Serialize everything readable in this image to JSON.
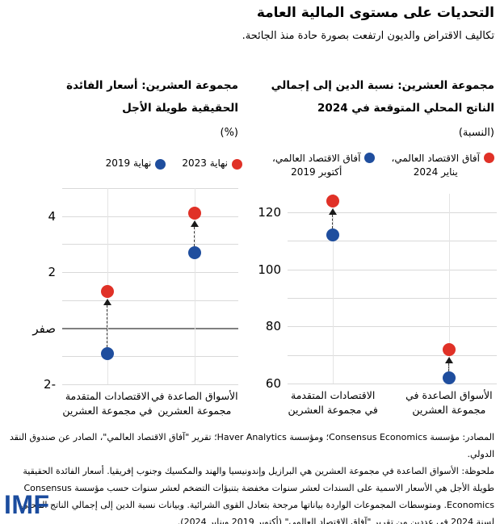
{
  "page": {
    "title": "التحديات على مستوى المالية العامة",
    "subtitle": "تكاليف الاقتراض والديون ارتفعت بصورة حادة منذ الجائحة.",
    "logo": "IMF"
  },
  "colors": {
    "dot_red": "#e03127",
    "dot_blue": "#1f4e9e",
    "arrow_black": "#1a1a1a",
    "gridline_gray": "#d9d9d9",
    "zero_line_gray": "#808080",
    "logo_blue": "#1b4c9e"
  },
  "footer": {
    "sources": "المصادر: مؤسسة Consensus Economics؛ ومؤسسة Haver Analytics؛ تقرير \"آفاق الاقتصاد العالمي\"، الصادر عن صندوق النقد الدولي.",
    "note": "ملحوظة: الأسواق الصاعدة في مجموعة العشرين هي البرازيل وإندونيسيا والهند والمكسيك وجنوب إفريقيا. أسعار الفائدة الحقيقية طويلة الأجل هي الأسعار الاسمية على السندات لعشر سنوات مخفضة بتنبؤات التضخم لعشر سنوات حسب مؤسسة Consensus Economics. ومتوسطات المجموعات الواردة بياناتها مرجحة بتعادل القوى الشرائية. وبيانات نسبة الدين إلى إجمالي الناتج المحلي لسنة 2024 في عددين من تقرير \"آفاق الاقتصاد العالمي\" (أكتوبر 2019 ويناير 2024)."
  },
  "chart_data": [
    {
      "type": "scatter",
      "title": "مجموعة العشرين: نسبة الدين إلى إجمالي الناتج المحلي المتوقعة في 2024",
      "unit_label": "(النسبة)",
      "legend": [
        {
          "label": "آفاق الاقتصاد العالمي،\nيناير 2024",
          "color": "#e03127"
        },
        {
          "label": "آفاق الاقتصاد العالمي،\nأكتوبر 2019",
          "color": "#1f4e9e"
        }
      ],
      "categories": [
        "الاقتصادات المتقدمة في مجموعة العشرين",
        "الأسواق الصاعدة في مجموعة العشرين"
      ],
      "series": [
        {
          "name": "آفاق الاقتصاد العالمي، أكتوبر 2019",
          "color": "#1f4e9e",
          "values": [
            112,
            62
          ]
        },
        {
          "name": "آفاق الاقتصاد العالمي، يناير 2024",
          "color": "#e03127",
          "values": [
            124,
            72
          ]
        }
      ],
      "ylim": [
        60,
        126.5
      ],
      "grid_values": [
        120,
        110,
        100,
        90,
        80,
        70,
        60
      ],
      "yticks": [
        {
          "value": 120,
          "label": "120"
        },
        {
          "value": 100,
          "label": "100"
        },
        {
          "value": 80,
          "label": "80"
        },
        {
          "value": 60,
          "label": "60"
        }
      ],
      "zero_line": false,
      "col_frac": [
        0.217,
        0.772
      ],
      "grid": true,
      "legend_position": "top-right"
    },
    {
      "type": "scatter",
      "title": "مجموعة العشرين: أسعار الفائدة الحقيقية طويلة الأجل",
      "unit_label": "(%)",
      "legend": [
        {
          "label": "نهاية 2023",
          "color": "#e03127"
        },
        {
          "label": "نهاية 2019",
          "color": "#1f4e9e"
        }
      ],
      "categories": [
        "الاقتصادات المتقدمة في مجموعة العشرين",
        "الأسواق الصاعدة في مجموعة العشرين"
      ],
      "series": [
        {
          "name": "نهاية 2019",
          "color": "#1f4e9e",
          "values": [
            -0.9,
            2.7
          ]
        },
        {
          "name": "نهاية 2023",
          "color": "#e03127",
          "values": [
            1.3,
            4.1
          ]
        }
      ],
      "ylim": [
        -2,
        5
      ],
      "grid_values": [
        5,
        4,
        3,
        2,
        1,
        -1,
        -2
      ],
      "yticks": [
        {
          "value": 4,
          "label": "4"
        },
        {
          "value": 2,
          "label": "2"
        },
        {
          "value": 0,
          "label": "صفر"
        },
        {
          "value": -2,
          "label": "2-"
        }
      ],
      "zero_line": true,
      "col_frac": [
        0.257,
        0.752
      ],
      "grid": true,
      "legend_position": "top-right"
    }
  ]
}
